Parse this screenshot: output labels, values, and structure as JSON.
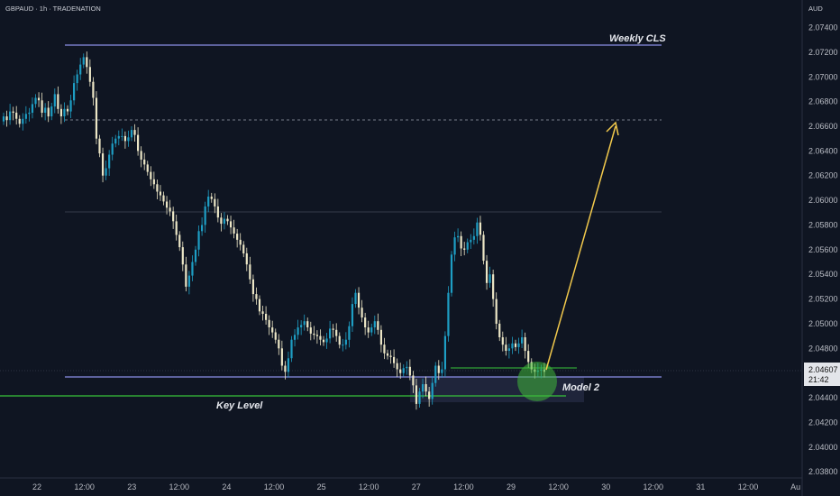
{
  "header": {
    "symbol_line": "GBPAUD · 1h · TRADENATION",
    "currency": "AUD"
  },
  "colors": {
    "background": "#0f1522",
    "bull": "#1e9ec4",
    "bear": "#ece6c6",
    "level_line": "#8b8fe6",
    "key_level": "#37c43a",
    "arrow": "#f2c94c",
    "circle": "#3fb83a",
    "price_label_bg": "#e3e5ea"
  },
  "chart_data": {
    "type": "candlestick",
    "ylim": [
      2.0375,
      2.0755
    ],
    "y_ticks": [
      "2.07400",
      "2.07200",
      "2.07000",
      "2.06800",
      "2.06600",
      "2.06400",
      "2.06200",
      "2.06000",
      "2.05800",
      "2.05600",
      "2.05400",
      "2.05200",
      "2.05000",
      "2.04800",
      "2.04600",
      "2.04400",
      "2.04200",
      "2.04000",
      "2.03800"
    ],
    "x_ticks": [
      "22",
      "12:00",
      "23",
      "12:00",
      "24",
      "12:00",
      "25",
      "12:00",
      "27",
      "12:00",
      "29",
      "12:00",
      "30",
      "12:00",
      "31",
      "12:00",
      "Au"
    ],
    "current_price": "2.04607",
    "countdown": "21:42",
    "levels": [
      {
        "name": "Weekly CLS",
        "price": 2.0724,
        "label": "Weekly CLS"
      },
      {
        "name": "target-dashed",
        "price": 2.0665
      },
      {
        "name": "mid-gray",
        "price": 2.0589
      },
      {
        "name": "lower-purple",
        "price": 2.0456
      },
      {
        "name": "Key Level",
        "price": 2.044,
        "label": "Key Level"
      }
    ],
    "annotations": {
      "model": "Model 2"
    },
    "closes": [
      2.0668,
      2.0665,
      2.0672,
      2.0671,
      2.0666,
      2.0662,
      2.0666,
      2.067,
      2.0671,
      2.0678,
      2.0683,
      2.0681,
      2.0671,
      2.0675,
      2.0668,
      2.0676,
      2.0686,
      2.0674,
      2.0668,
      2.0674,
      2.0672,
      2.0681,
      2.0695,
      2.0702,
      2.071,
      2.0716,
      2.0708,
      2.0696,
      2.0683,
      2.065,
      2.0638,
      2.062,
      2.0626,
      2.0637,
      2.0646,
      2.065,
      2.0652,
      2.0652,
      2.0648,
      2.0651,
      2.0657,
      2.0653,
      2.064,
      2.0633,
      2.0629,
      2.0623,
      2.0617,
      2.0613,
      2.0607,
      2.0604,
      2.0599,
      2.0594,
      2.0591,
      2.0583,
      2.0572,
      2.0562,
      2.0548,
      2.053,
      2.0539,
      2.055,
      2.056,
      2.0575,
      2.058,
      2.0595,
      2.0603,
      2.0601,
      2.0595,
      2.0586,
      2.0581,
      2.0585,
      2.0583,
      2.0578,
      2.0573,
      2.0568,
      2.0564,
      2.0557,
      2.0548,
      2.0536,
      2.0524,
      2.052,
      2.051,
      2.0508,
      2.0503,
      2.0497,
      2.0493,
      2.0487,
      2.048,
      2.0466,
      2.0461,
      2.0472,
      2.0487,
      2.0491,
      2.0497,
      2.0499,
      2.0502,
      2.0497,
      2.0492,
      2.0491,
      2.049,
      2.0487,
      2.0485,
      2.0488,
      2.0496,
      2.0495,
      2.049,
      2.0483,
      2.0483,
      2.0487,
      2.0498,
      2.0516,
      2.0525,
      2.0513,
      2.0505,
      2.0497,
      2.0493,
      2.0497,
      2.0502,
      2.0495,
      2.0483,
      2.0476,
      2.0474,
      2.0473,
      2.0468,
      2.0463,
      2.046,
      2.0464,
      2.0465,
      2.0458,
      2.045,
      2.0435,
      2.0445,
      2.0451,
      2.0445,
      2.0439,
      2.0452,
      2.0466,
      2.046,
      2.0463,
      2.049,
      2.0525,
      2.0556,
      2.057,
      2.0571,
      2.0561,
      2.056,
      2.0566,
      2.0568,
      2.0571,
      2.0582,
      2.0572,
      2.0551,
      2.0533,
      2.054,
      2.052,
      2.05,
      2.0489,
      2.0483,
      2.0478,
      2.048,
      2.0484,
      2.0481,
      2.0484,
      2.0489,
      2.0478,
      2.0469,
      2.0463,
      2.0461,
      2.0462,
      2.0463,
      2.0461
    ]
  }
}
